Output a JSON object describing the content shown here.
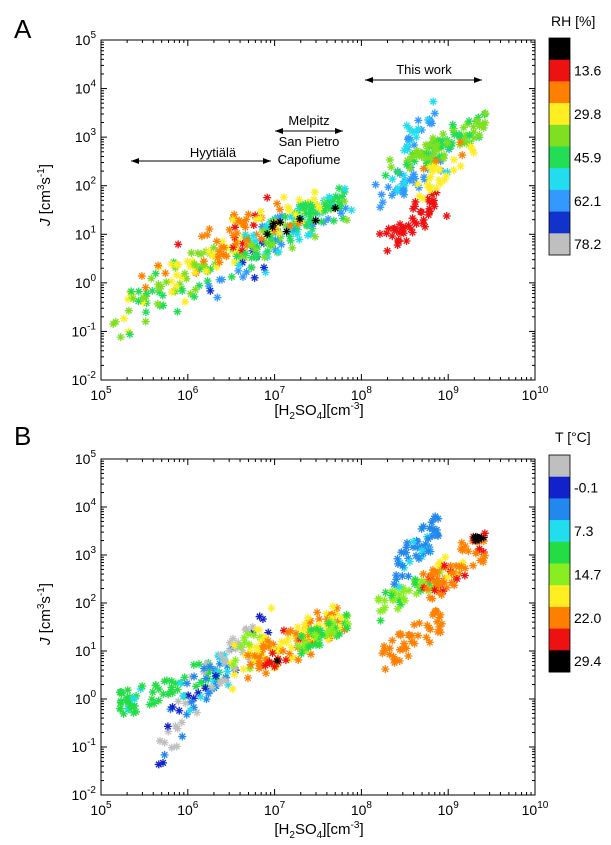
{
  "panels": [
    {
      "panel_label": "A",
      "ylabel_italic": "J",
      "ylabel_rest": " [cm",
      "ylabel_sup1": "3",
      "ylabel_mid": "s",
      "ylabel_sup2": "-1",
      "ylabel_end": "]",
      "xlabel_a": "[H",
      "xlabel_sub": "2",
      "xlabel_b": "SO",
      "xlabel_sub2": "4",
      "xlabel_c": "][cm",
      "xlabel_sup": "-3",
      "xlabel_d": "]",
      "colorbar_title": "RH [%]",
      "colorbar_ticks": [
        "13.6",
        "29.8",
        "45.9",
        "62.1",
        "78.2"
      ],
      "annotations": [
        {
          "text": "Hyytiälä"
        },
        {
          "text": "Melpitz"
        },
        {
          "text": "San Pietro"
        },
        {
          "text": "Capofiume"
        },
        {
          "text": "This work"
        }
      ]
    },
    {
      "panel_label": "B",
      "ylabel_italic": "J",
      "ylabel_rest": " [cm",
      "ylabel_sup1": "3",
      "ylabel_mid": "s",
      "ylabel_sup2": "-1",
      "ylabel_end": "]",
      "xlabel_a": "[H",
      "xlabel_sub": "2",
      "xlabel_b": "SO",
      "xlabel_sub2": "4",
      "xlabel_c": "][cm",
      "xlabel_sup": "-3",
      "xlabel_d": "]",
      "colorbar_title": "T [°C]",
      "colorbar_ticks": [
        "-0.1",
        "7.3",
        "14.7",
        "22.0",
        "29.4"
      ]
    }
  ],
  "colors": {
    "rh_scale": [
      "#000000",
      "#ee1111",
      "#ff8000",
      "#ffee22",
      "#7ee020",
      "#22dd55",
      "#22ddee",
      "#3399ff",
      "#1133cc",
      "#bfbfbf"
    ],
    "t_scale": [
      "#bfbfbf",
      "#1122cc",
      "#2288ee",
      "#22ddee",
      "#22dd44",
      "#88ee22",
      "#ffee22",
      "#ff8000",
      "#ee1111",
      "#000000"
    ]
  },
  "chart_data": [
    {
      "type": "scatter",
      "panel": "A",
      "x_scale": "log",
      "y_scale": "log",
      "xlim": [
        100000,
        10000000000
      ],
      "ylim": [
        0.01,
        100000
      ],
      "x_ticks": [
        "10^5",
        "10^6",
        "10^7",
        "10^8",
        "10^9",
        "10^10"
      ],
      "y_ticks": [
        "10^-2",
        "10^-1",
        "10^0",
        "10^1",
        "10^2",
        "10^3",
        "10^4",
        "10^5"
      ],
      "color_variable": "RH [%]",
      "color_range": [
        5,
        85
      ],
      "marker": "asterisk",
      "clusters": [
        {
          "x": [
            150000,
            2000000
          ],
          "y": [
            0.06,
            6
          ],
          "c": [
            35,
            50
          ],
          "n": 60
        },
        {
          "x": [
            300000,
            5000000
          ],
          "y": [
            0.5,
            8
          ],
          "c": [
            28,
            42
          ],
          "n": 45
        },
        {
          "x": [
            800000,
            9000000
          ],
          "y": [
            1.5,
            40
          ],
          "c": [
            14,
            32
          ],
          "n": 30
        },
        {
          "x": [
            1500000,
            9000000
          ],
          "y": [
            0.3,
            8
          ],
          "c": [
            45,
            78
          ],
          "n": 25
        },
        {
          "x": [
            5000000,
            70000000
          ],
          "y": [
            3,
            80
          ],
          "c": [
            40,
            65
          ],
          "n": 110
        },
        {
          "x": [
            3000000,
            40000000
          ],
          "y": [
            5,
            90
          ],
          "c": [
            24,
            34
          ],
          "n": 40
        },
        {
          "x": [
            20000000,
            70000000
          ],
          "y": [
            20,
            80
          ],
          "c": [
            45,
            55
          ],
          "n": 30
        },
        {
          "x": [
            8000000,
            60000000
          ],
          "y": [
            10,
            40
          ],
          "c": [
            5,
            12
          ],
          "n": 8
        },
        {
          "x": [
            180000000,
            850000000
          ],
          "y": [
            5,
            70
          ],
          "c": [
            13,
            16
          ],
          "n": 45
        },
        {
          "x": [
            150000000,
            900000000
          ],
          "y": [
            40,
            500
          ],
          "c": [
            60,
            68
          ],
          "n": 45
        },
        {
          "x": [
            300000000,
            750000000
          ],
          "y": [
            600,
            6000
          ],
          "c": [
            58,
            64
          ],
          "n": 25
        },
        {
          "x": [
            200000000,
            900000000
          ],
          "y": [
            150,
            800
          ],
          "c": [
            40,
            48
          ],
          "n": 30
        },
        {
          "x": [
            500000000,
            3000000000
          ],
          "y": [
            300,
            3000
          ],
          "c": [
            38,
            50
          ],
          "n": 70
        },
        {
          "x": [
            400000000,
            2000000000
          ],
          "y": [
            60,
            900
          ],
          "c": [
            28,
            32
          ],
          "n": 30
        }
      ]
    },
    {
      "type": "scatter",
      "panel": "B",
      "x_scale": "log",
      "y_scale": "log",
      "xlim": [
        100000,
        10000000000
      ],
      "ylim": [
        0.01,
        100000
      ],
      "x_ticks": [
        "10^5",
        "10^6",
        "10^7",
        "10^8",
        "10^9",
        "10^10"
      ],
      "y_ticks": [
        "10^-2",
        "10^-1",
        "10^0",
        "10^1",
        "10^2",
        "10^3",
        "10^4",
        "10^5"
      ],
      "color_variable": "T [°C]",
      "color_range": [
        -4,
        34
      ],
      "marker": "asterisk",
      "clusters": [
        {
          "x": [
            150000,
            2500000
          ],
          "y": [
            0.5,
            6
          ],
          "c": [
            11,
            15
          ],
          "n": 70
        },
        {
          "x": [
            500000,
            2000000
          ],
          "y": [
            0.06,
            6
          ],
          "c": [
            -2,
            5
          ],
          "n": 35
        },
        {
          "x": [
            800000,
            4000000
          ],
          "y": [
            0.5,
            15
          ],
          "c": [
            5,
            10
          ],
          "n": 30
        },
        {
          "x": [
            2000000,
            9000000
          ],
          "y": [
            2,
            60
          ],
          "c": [
            -3,
            1
          ],
          "n": 30
        },
        {
          "x": [
            3000000,
            9000000
          ],
          "y": [
            2,
            60
          ],
          "c": [
            17,
            22
          ],
          "n": 25
        },
        {
          "x": [
            5000000,
            60000000
          ],
          "y": [
            3,
            80
          ],
          "c": [
            19,
            27
          ],
          "n": 110
        },
        {
          "x": [
            20000000,
            70000000
          ],
          "y": [
            10,
            60
          ],
          "c": [
            13,
            16
          ],
          "n": 40
        },
        {
          "x": [
            7000000,
            12000000
          ],
          "y": [
            3,
            10
          ],
          "c": [
            29,
            31
          ],
          "n": 8
        },
        {
          "x": [
            180000000,
            850000000
          ],
          "y": [
            5,
            70
          ],
          "c": [
            24,
            26
          ],
          "n": 45
        },
        {
          "x": [
            150000000,
            800000000
          ],
          "y": [
            50,
            500
          ],
          "c": [
            14,
            17
          ],
          "n": 40
        },
        {
          "x": [
            250000000,
            750000000
          ],
          "y": [
            300,
            6000
          ],
          "c": [
            5,
            8
          ],
          "n": 50
        },
        {
          "x": [
            500000000,
            2500000000
          ],
          "y": [
            100,
            2500
          ],
          "c": [
            22,
            27
          ],
          "n": 70
        },
        {
          "x": [
            1800000000,
            3000000000
          ],
          "y": [
            1800,
            3000
          ],
          "c": [
            29,
            32
          ],
          "n": 12
        }
      ]
    }
  ]
}
